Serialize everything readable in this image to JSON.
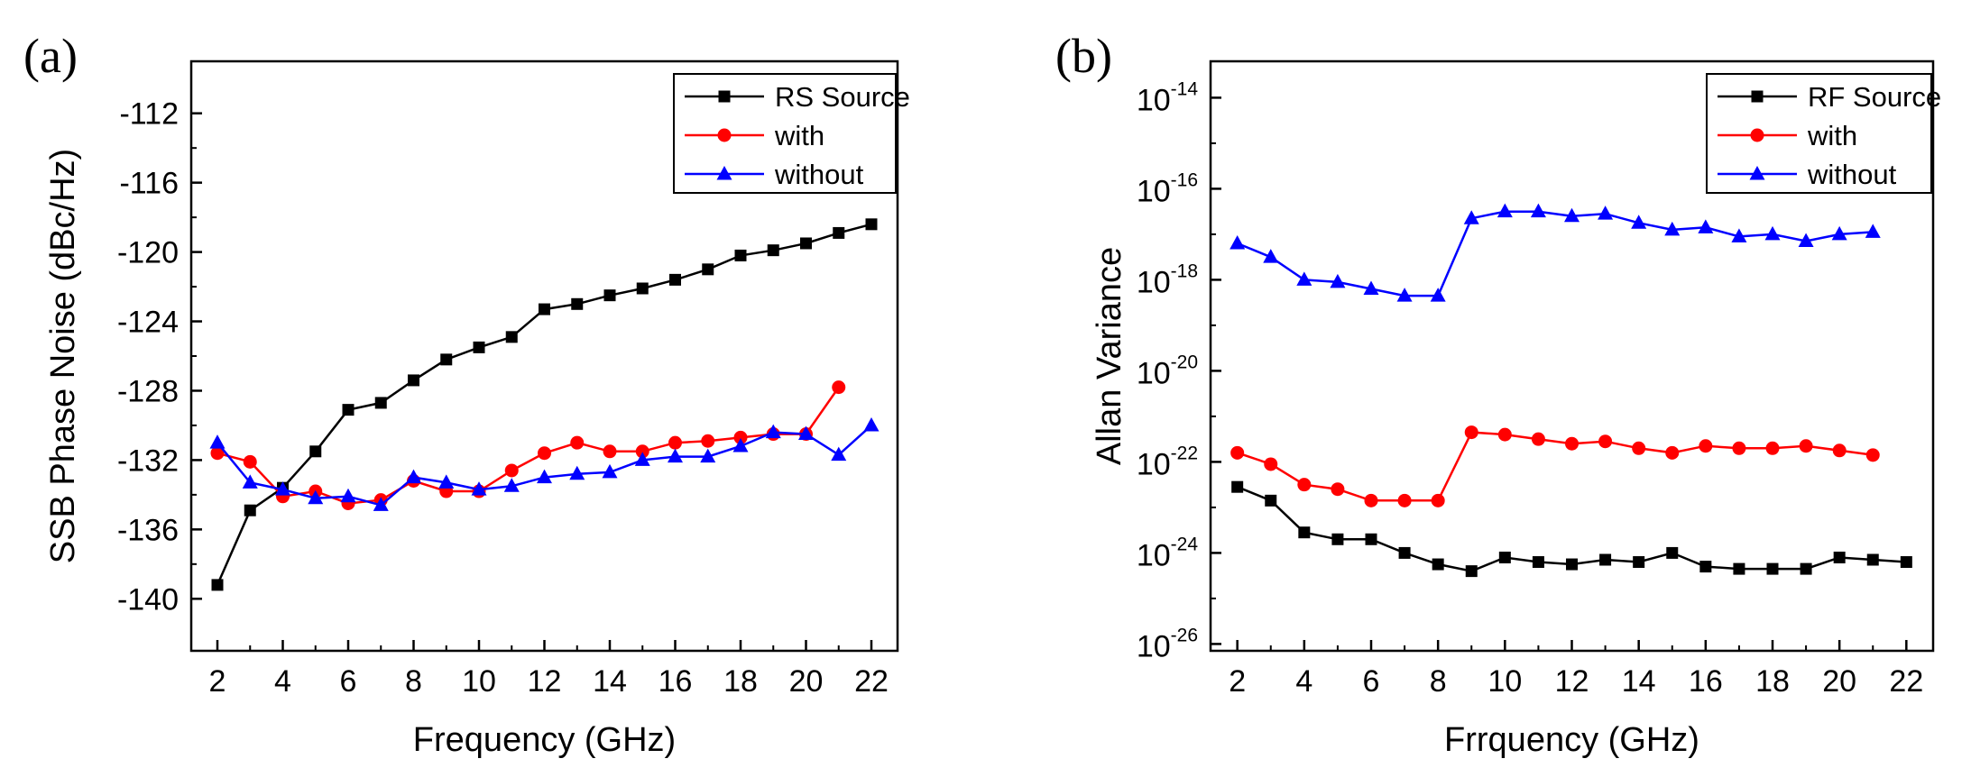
{
  "chart_data": [
    {
      "panel": "(a)",
      "type": "line",
      "xlabel": "Frequency (GHz)",
      "ylabel": "SSB Phase Noise (dBc/Hz)",
      "xlim": [
        1.2,
        22.8
      ],
      "ylim": [
        -143,
        -109
      ],
      "xticks": [
        2,
        4,
        6,
        8,
        10,
        12,
        14,
        16,
        18,
        20,
        22
      ],
      "xtick_labels": [
        "2",
        "4",
        "6",
        "8",
        "10",
        "12",
        "14",
        "16",
        "18",
        "20",
        "22"
      ],
      "yticks": [
        -140,
        -136,
        -132,
        -128,
        -124,
        -120,
        -116,
        -112
      ],
      "ytick_labels": [
        "-140",
        "-136",
        "-132",
        "-128",
        "-124",
        "-120",
        "-116",
        "-112"
      ],
      "legend_position": "top-right",
      "series": [
        {
          "name": "RS Source",
          "color": "#000000",
          "marker": "square",
          "x": [
            2,
            3,
            4,
            5,
            6,
            7,
            8,
            9,
            10,
            11,
            12,
            13,
            14,
            15,
            16,
            17,
            18,
            19,
            20,
            21,
            22
          ],
          "y": [
            -139.2,
            -134.9,
            -133.6,
            -131.5,
            -129.1,
            -128.7,
            -127.4,
            -126.2,
            -125.5,
            -124.9,
            -123.3,
            -123.0,
            -122.5,
            -122.1,
            -121.6,
            -121.0,
            -120.2,
            -119.9,
            -119.5,
            -118.9,
            -118.4
          ]
        },
        {
          "name": "with",
          "color": "#ff0000",
          "marker": "circle",
          "x": [
            2,
            3,
            4,
            5,
            6,
            7,
            8,
            9,
            10,
            11,
            12,
            13,
            14,
            15,
            16,
            17,
            18,
            19,
            20,
            21
          ],
          "y": [
            -131.6,
            -132.1,
            -134.1,
            -133.8,
            -134.5,
            -134.3,
            -133.2,
            -133.8,
            -133.8,
            -132.6,
            -131.6,
            -131.0,
            -131.5,
            -131.5,
            -131.0,
            -130.9,
            -130.7,
            -130.5,
            -130.5,
            -127.8
          ]
        },
        {
          "name": "without",
          "color": "#0000ff",
          "marker": "triangle",
          "x": [
            2,
            3,
            4,
            5,
            6,
            7,
            8,
            9,
            10,
            11,
            12,
            13,
            14,
            15,
            16,
            17,
            18,
            19,
            20,
            21,
            22
          ],
          "y": [
            -131.0,
            -133.3,
            -133.7,
            -134.2,
            -134.1,
            -134.6,
            -133.0,
            -133.3,
            -133.7,
            -133.5,
            -133.0,
            -132.8,
            -132.7,
            -132.0,
            -131.8,
            -131.8,
            -131.2,
            -130.4,
            -130.5,
            -131.7,
            -130.0
          ]
        }
      ]
    },
    {
      "panel": "(b)",
      "type": "line",
      "xlabel": "Frrquency (GHz)",
      "ylabel": "Allan Variance",
      "yscale": "log",
      "xlim": [
        1.2,
        22.8
      ],
      "ylim_log10": [
        -26.15,
        -13.2
      ],
      "xticks": [
        2,
        4,
        6,
        8,
        10,
        12,
        14,
        16,
        18,
        20,
        22
      ],
      "xtick_labels": [
        "2",
        "4",
        "6",
        "8",
        "10",
        "12",
        "14",
        "16",
        "18",
        "20",
        "22"
      ],
      "ytick_exponents": [
        -26,
        -24,
        -22,
        -20,
        -18,
        -16,
        -14
      ],
      "ytick_base": "10",
      "ytick_exp_labels": [
        "-26",
        "-24",
        "-22",
        "-20",
        "-18",
        "-16",
        "-14"
      ],
      "legend_position": "top-right",
      "series": [
        {
          "name": "RF Source",
          "color": "#000000",
          "marker": "square",
          "x": [
            2,
            3,
            4,
            5,
            6,
            7,
            8,
            9,
            10,
            11,
            12,
            13,
            14,
            15,
            16,
            17,
            18,
            19,
            20,
            21,
            22
          ],
          "log10_y": [
            -22.55,
            -22.85,
            -23.55,
            -23.7,
            -23.7,
            -24.0,
            -24.25,
            -24.4,
            -24.1,
            -24.2,
            -24.25,
            -24.15,
            -24.2,
            -24.0,
            -24.3,
            -24.35,
            -24.35,
            -24.35,
            -24.1,
            -24.15,
            -24.2
          ]
        },
        {
          "name": "with",
          "color": "#ff0000",
          "marker": "circle",
          "x": [
            2,
            3,
            4,
            5,
            6,
            7,
            8,
            9,
            10,
            11,
            12,
            13,
            14,
            15,
            16,
            17,
            18,
            19,
            20,
            21
          ],
          "log10_y": [
            -21.8,
            -22.05,
            -22.5,
            -22.6,
            -22.85,
            -22.85,
            -22.85,
            -21.35,
            -21.4,
            -21.5,
            -21.6,
            -21.55,
            -21.7,
            -21.8,
            -21.65,
            -21.7,
            -21.7,
            -21.65,
            -21.75,
            -21.85
          ]
        },
        {
          "name": "without",
          "color": "#0000ff",
          "marker": "triangle",
          "x": [
            2,
            3,
            4,
            5,
            6,
            7,
            8,
            9,
            10,
            11,
            12,
            13,
            14,
            15,
            16,
            17,
            18,
            19,
            20,
            21
          ],
          "log10_y": [
            -17.2,
            -17.5,
            -18.0,
            -18.05,
            -18.2,
            -18.35,
            -18.35,
            -16.65,
            -16.5,
            -16.5,
            -16.6,
            -16.55,
            -16.75,
            -16.9,
            -16.85,
            -17.05,
            -17.0,
            -17.15,
            -17.0,
            -16.95
          ]
        }
      ]
    }
  ]
}
